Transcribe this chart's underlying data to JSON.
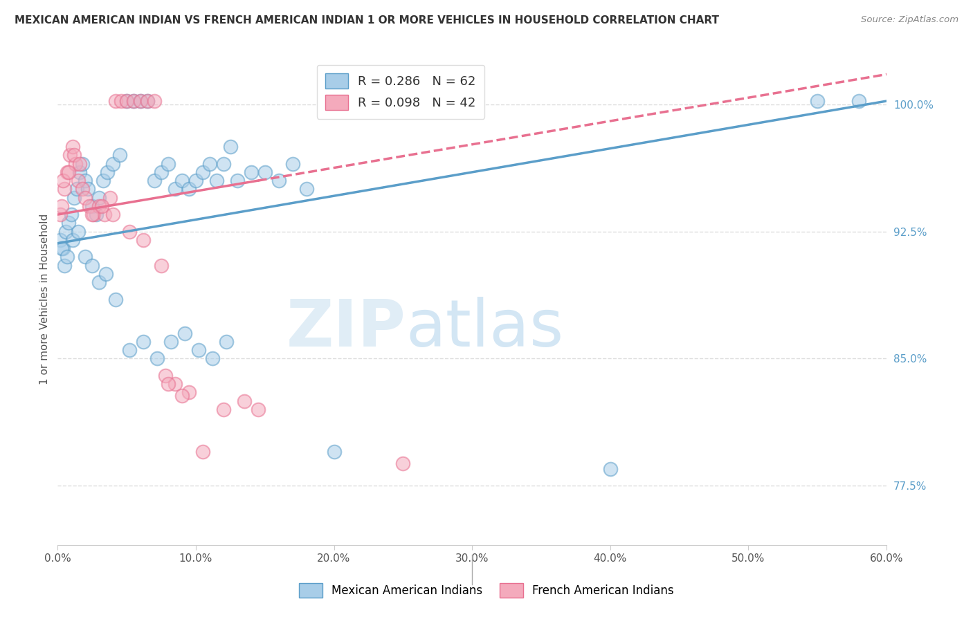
{
  "title": "MEXICAN AMERICAN INDIAN VS FRENCH AMERICAN INDIAN 1 OR MORE VEHICLES IN HOUSEHOLD CORRELATION CHART",
  "source": "Source: ZipAtlas.com",
  "ylabel": "1 or more Vehicles in Household",
  "legend_blue_r": "R = 0.286",
  "legend_blue_n": "N = 62",
  "legend_pink_r": "R = 0.098",
  "legend_pink_n": "N = 42",
  "blue_color": "#A8CDE8",
  "pink_color": "#F4AABC",
  "blue_line_color": "#5B9EC9",
  "pink_line_color": "#E87090",
  "watermark_zip": "ZIP",
  "watermark_atlas": "atlas",
  "blue_scatter_x": [
    0.2,
    0.4,
    0.6,
    0.8,
    1.0,
    1.2,
    1.4,
    1.6,
    1.8,
    2.0,
    2.2,
    2.5,
    2.8,
    3.0,
    3.3,
    3.6,
    4.0,
    4.5,
    5.0,
    5.5,
    6.0,
    6.5,
    7.0,
    7.5,
    8.0,
    8.5,
    9.0,
    9.5,
    10.0,
    10.5,
    11.0,
    11.5,
    12.0,
    12.5,
    13.0,
    14.0,
    15.0,
    16.0,
    17.0,
    18.0,
    0.3,
    0.5,
    0.7,
    1.1,
    1.5,
    2.0,
    2.5,
    3.0,
    3.5,
    4.2,
    5.2,
    6.2,
    7.2,
    8.2,
    9.2,
    10.2,
    11.2,
    12.2,
    55.0,
    58.0,
    40.0,
    20.0
  ],
  "blue_scatter_y": [
    92.0,
    91.5,
    92.5,
    93.0,
    93.5,
    94.5,
    95.0,
    96.0,
    96.5,
    95.5,
    95.0,
    94.0,
    93.5,
    94.5,
    95.5,
    96.0,
    96.5,
    97.0,
    100.2,
    100.2,
    100.2,
    100.2,
    95.5,
    96.0,
    96.5,
    95.0,
    95.5,
    95.0,
    95.5,
    96.0,
    96.5,
    95.5,
    96.5,
    97.5,
    95.5,
    96.0,
    96.0,
    95.5,
    96.5,
    95.0,
    91.5,
    90.5,
    91.0,
    92.0,
    92.5,
    91.0,
    90.5,
    89.5,
    90.0,
    88.5,
    85.5,
    86.0,
    85.0,
    86.0,
    86.5,
    85.5,
    85.0,
    86.0,
    100.2,
    100.2,
    78.5,
    79.5
  ],
  "pink_scatter_x": [
    0.2,
    0.3,
    0.5,
    0.7,
    0.9,
    1.1,
    1.3,
    1.5,
    1.8,
    2.0,
    2.3,
    2.6,
    3.0,
    3.4,
    3.8,
    4.2,
    4.6,
    5.0,
    5.5,
    6.0,
    6.5,
    7.0,
    0.4,
    0.8,
    1.2,
    1.6,
    2.5,
    3.2,
    4.0,
    5.2,
    6.2,
    7.5,
    8.5,
    9.5,
    10.5,
    12.0,
    13.5,
    7.8,
    8.0,
    9.0,
    14.5,
    25.0
  ],
  "pink_scatter_y": [
    93.5,
    94.0,
    95.0,
    96.0,
    97.0,
    97.5,
    96.5,
    95.5,
    95.0,
    94.5,
    94.0,
    93.5,
    94.0,
    93.5,
    94.5,
    100.2,
    100.2,
    100.2,
    100.2,
    100.2,
    100.2,
    100.2,
    95.5,
    96.0,
    97.0,
    96.5,
    93.5,
    94.0,
    93.5,
    92.5,
    92.0,
    90.5,
    83.5,
    83.0,
    79.5,
    82.0,
    82.5,
    84.0,
    83.5,
    82.8,
    82.0,
    78.8
  ],
  "xmin": 0.0,
  "xmax": 60.0,
  "ymin": 74.0,
  "ymax": 103.0,
  "yticks": [
    77.5,
    85.0,
    92.5,
    100.0
  ],
  "blue_line_x0": 0.0,
  "blue_line_y0": 91.8,
  "blue_line_x1": 60.0,
  "blue_line_y1": 100.2,
  "pink_line_x0": 0.0,
  "pink_line_y0": 93.5,
  "pink_line_x1": 14.5,
  "pink_line_y1": 95.5,
  "pink_dash_x0": 14.5,
  "pink_dash_x1": 60.0,
  "grid_color": "#DDDDDD"
}
